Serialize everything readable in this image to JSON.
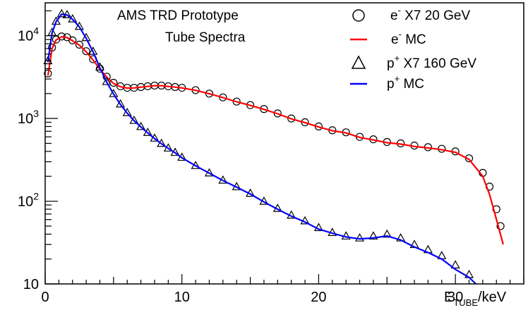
{
  "chart_data": {
    "type": "scatter",
    "title": "AMS TRD Prototype",
    "subtitle": "Tube Spectra",
    "xlabel": "E_TUBE/keV",
    "xlabel_main": "E",
    "xlabel_sub": "TUBE",
    "xlabel_unit": "/keV",
    "ylabel": "",
    "xlim": [
      0,
      35
    ],
    "ylim": [
      10,
      25000
    ],
    "yscale": "log",
    "grid": false,
    "legend_placement": "top-right",
    "x_ticks": [
      {
        "value": 0,
        "label": "0"
      },
      {
        "value": 10,
        "label": "10"
      },
      {
        "value": 20,
        "label": "20"
      },
      {
        "value": 30,
        "label": "30"
      }
    ],
    "y_ticks": [
      {
        "value": 10,
        "base": "10",
        "exp": ""
      },
      {
        "value": 100,
        "base": "10",
        "exp": "2"
      },
      {
        "value": 1000,
        "base": "10",
        "exp": "3"
      },
      {
        "value": 10000,
        "base": "10",
        "exp": "4"
      }
    ],
    "series": [
      {
        "name": "e⁻ X7   20 GeV",
        "legend_base": "e",
        "legend_sup": "-",
        "legend_rest": " X7   20 GeV",
        "marker": "circle",
        "color": "#000000",
        "x": [
          0.2,
          0.5,
          0.8,
          1.2,
          1.6,
          2.0,
          2.5,
          3.0,
          3.5,
          4.0,
          4.5,
          5.0,
          5.5,
          6.0,
          6.5,
          7.0,
          7.5,
          8.0,
          8.5,
          9.0,
          9.5,
          10.0,
          11.0,
          12.0,
          13.0,
          14.0,
          15.0,
          16.0,
          17.0,
          18.0,
          19.0,
          20.0,
          21.0,
          22.0,
          23.0,
          24.0,
          25.0,
          26.0,
          27.0,
          28.0,
          29.0,
          30.0,
          31.0,
          32.0,
          32.5,
          33.0,
          33.3
        ],
        "y": [
          3500,
          7200,
          9000,
          9800,
          9600,
          8800,
          7800,
          6500,
          5200,
          4000,
          3200,
          2700,
          2450,
          2350,
          2350,
          2400,
          2450,
          2500,
          2500,
          2450,
          2400,
          2350,
          2200,
          2000,
          1800,
          1600,
          1450,
          1300,
          1150,
          1000,
          900,
          800,
          720,
          680,
          600,
          560,
          520,
          500,
          470,
          450,
          430,
          400,
          330,
          220,
          150,
          80,
          50
        ]
      },
      {
        "name": "e⁻ MC",
        "legend_base": "e",
        "legend_sup": "-",
        "legend_rest": " MC",
        "marker": "line",
        "color": "#ff0000",
        "x": [
          0.2,
          0.5,
          0.8,
          1.2,
          1.6,
          2.0,
          2.5,
          3.0,
          3.5,
          4.0,
          4.5,
          5.0,
          5.5,
          6.0,
          6.5,
          7.0,
          7.5,
          8.0,
          8.5,
          9.0,
          9.5,
          10.0,
          11.0,
          12.0,
          13.0,
          14.0,
          15.0,
          16.0,
          17.0,
          18.0,
          19.0,
          20.0,
          21.0,
          22.0,
          23.0,
          24.0,
          25.0,
          26.0,
          27.0,
          28.0,
          29.0,
          30.0,
          31.0,
          32.0,
          32.5,
          33.0,
          33.5
        ],
        "y": [
          3300,
          7000,
          8900,
          9700,
          9500,
          8700,
          7700,
          6400,
          5100,
          3950,
          3150,
          2650,
          2420,
          2330,
          2340,
          2390,
          2440,
          2490,
          2490,
          2440,
          2390,
          2340,
          2190,
          1990,
          1790,
          1590,
          1440,
          1290,
          1140,
          990,
          890,
          790,
          710,
          670,
          590,
          550,
          510,
          490,
          460,
          440,
          420,
          390,
          320,
          200,
          120,
          60,
          30
        ]
      },
      {
        "name": "p⁺ X7 160 GeV",
        "legend_base": "p",
        "legend_sup": "+",
        "legend_rest": " X7 160 GeV",
        "marker": "triangle",
        "color": "#000000",
        "x": [
          0.2,
          0.5,
          0.8,
          1.2,
          1.6,
          2.0,
          2.5,
          3.0,
          3.5,
          4.0,
          4.5,
          5.0,
          5.5,
          6.0,
          6.5,
          7.0,
          7.5,
          8.0,
          8.5,
          9.0,
          9.5,
          10.0,
          11.0,
          12.0,
          13.0,
          14.0,
          15.0,
          16.0,
          17.0,
          18.0,
          19.0,
          20.0,
          21.0,
          22.0,
          23.0,
          24.0,
          25.0,
          26.0,
          27.0,
          28.0,
          29.0,
          30.0,
          31.0
        ],
        "y": [
          5000,
          11000,
          15000,
          18500,
          18000,
          16000,
          13000,
          9500,
          6500,
          4200,
          2800,
          2000,
          1500,
          1180,
          950,
          800,
          680,
          580,
          500,
          440,
          390,
          340,
          270,
          220,
          180,
          150,
          125,
          100,
          82,
          68,
          58,
          48,
          42,
          38,
          36,
          38,
          40,
          36,
          30,
          26,
          22,
          17,
          13
        ]
      },
      {
        "name": "p⁺ MC",
        "legend_base": "p",
        "legend_sup": "+",
        "legend_rest": " MC",
        "marker": "line",
        "color": "#0000ff",
        "x": [
          0.2,
          0.5,
          0.8,
          1.2,
          1.6,
          2.0,
          2.5,
          3.0,
          3.5,
          4.0,
          4.5,
          5.0,
          5.5,
          6.0,
          6.5,
          7.0,
          7.5,
          8.0,
          8.5,
          9.0,
          9.5,
          10.0,
          11.0,
          12.0,
          13.0,
          14.0,
          15.0,
          16.0,
          17.0,
          18.0,
          19.0,
          20.0,
          21.0,
          22.0,
          23.0,
          24.0,
          25.0,
          26.0,
          27.0,
          28.0,
          29.0,
          30.0,
          31.0,
          31.5
        ],
        "y": [
          4800,
          10800,
          14800,
          18200,
          17800,
          15800,
          12800,
          9300,
          6400,
          4100,
          2750,
          1970,
          1480,
          1160,
          940,
          790,
          670,
          570,
          495,
          435,
          385,
          335,
          268,
          218,
          178,
          148,
          122,
          98,
          80,
          66,
          56,
          46,
          41,
          37,
          35,
          36,
          38,
          34,
          28,
          24,
          20,
          15,
          12,
          10
        ]
      }
    ]
  }
}
